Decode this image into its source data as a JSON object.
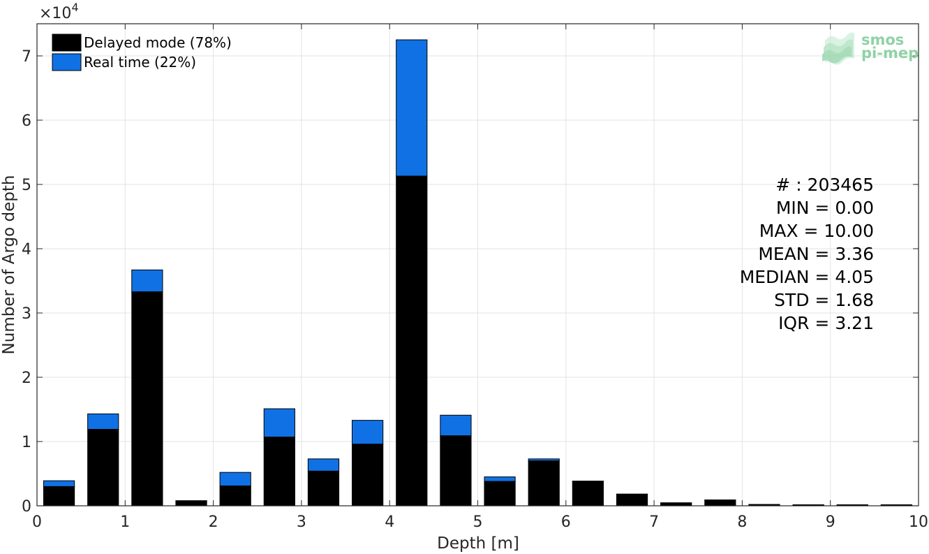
{
  "chart_data": {
    "type": "bar",
    "stacked": true,
    "xlabel": "Depth [m]",
    "ylabel": "Number of Argo depth",
    "y_multiplier_label": "×10",
    "y_multiplier_exponent": "4",
    "xlim": [
      0,
      10
    ],
    "ylim": [
      0,
      75000
    ],
    "xticks": [
      0,
      1,
      2,
      3,
      4,
      5,
      6,
      7,
      8,
      9,
      10
    ],
    "yticks": [
      0,
      10000,
      20000,
      30000,
      40000,
      50000,
      60000,
      70000
    ],
    "ytick_labels": [
      "0",
      "1",
      "2",
      "3",
      "4",
      "5",
      "6",
      "7"
    ],
    "grid": true,
    "legend_placement": "top-left",
    "bin_width": 0.35,
    "bin_centers": [
      0.25,
      0.75,
      1.25,
      1.75,
      2.25,
      2.75,
      3.25,
      3.75,
      4.25,
      4.75,
      5.25,
      5.75,
      6.25,
      6.75,
      7.25,
      7.75,
      8.25,
      8.75,
      9.25,
      9.75
    ],
    "series": [
      {
        "name": "Delayed mode (78%)",
        "color": "#000000",
        "values": [
          3000,
          11900,
          33300,
          700,
          3100,
          10700,
          5400,
          9600,
          51300,
          10900,
          3800,
          7000,
          3800,
          1800,
          450,
          900,
          200,
          150,
          150,
          150
        ]
      },
      {
        "name": "Real time (22%)",
        "color": "#1071e5",
        "values": [
          900,
          2400,
          3400,
          100,
          2100,
          4400,
          1900,
          3700,
          21200,
          3200,
          700,
          300,
          50,
          30,
          20,
          20,
          10,
          10,
          10,
          10
        ]
      }
    ],
    "stats": [
      "# : 203465",
      "MIN = 0.00",
      "MAX =  10.00",
      "MEAN = 3.36",
      "MEDIAN = 4.05",
      "STD = 1.68",
      "IQR = 3.21"
    ]
  },
  "logo": {
    "line1": "smos",
    "line2": "pi-mep",
    "color": "#8fd2a6"
  }
}
